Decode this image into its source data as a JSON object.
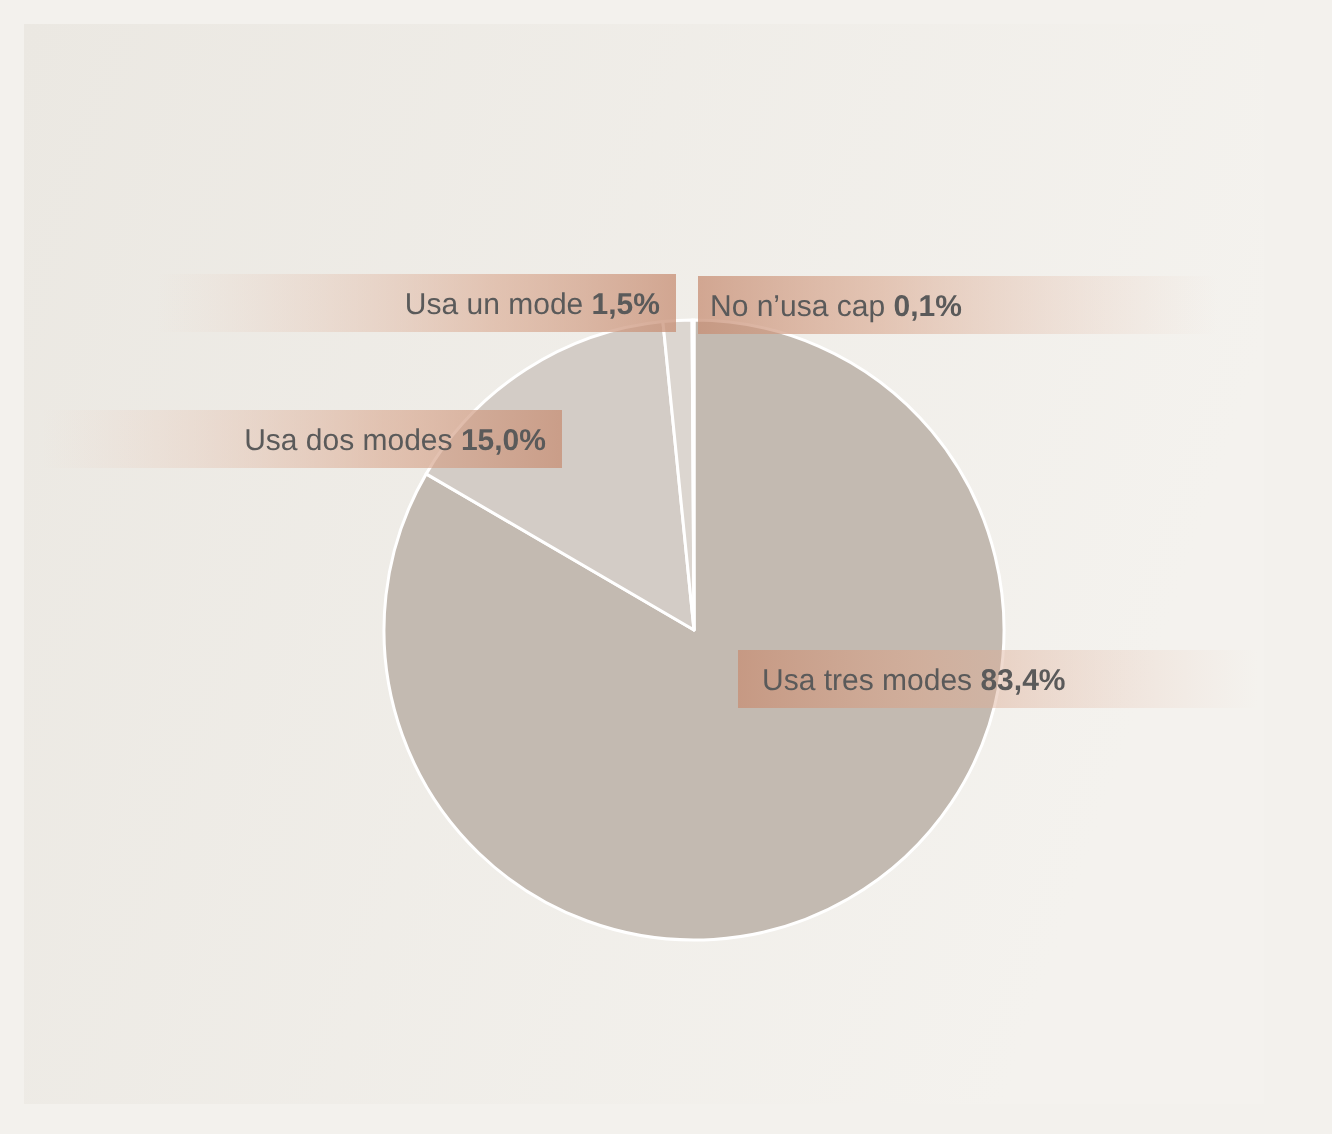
{
  "chart_data": {
    "type": "pie",
    "categories": [
      "Usa tres modes",
      "Usa dos modes",
      "Usa un mode",
      "No n’usa cap"
    ],
    "values": [
      83.4,
      15.0,
      1.5,
      0.1
    ],
    "value_labels": [
      "83,4%",
      "15,0%",
      "1,5%",
      "0,1%"
    ],
    "colors": [
      "#c3bab1",
      "#d3ccc6",
      "#dcd6d0",
      "#e2ddd7"
    ]
  }
}
